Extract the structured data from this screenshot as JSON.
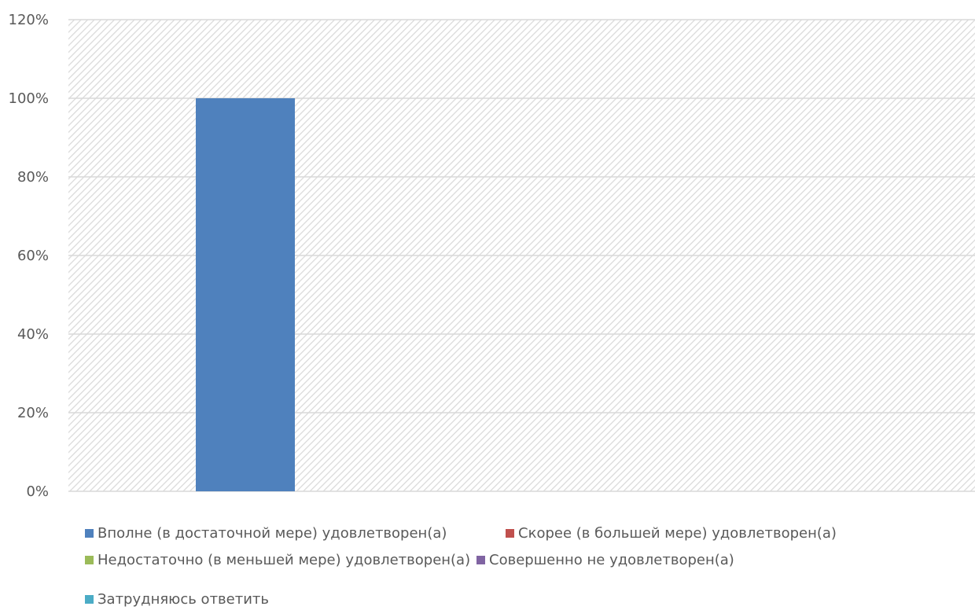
{
  "chart_data": {
    "type": "bar",
    "categories": [
      ""
    ],
    "series": [
      {
        "name": "Вполне (в достаточной мере) удовлетворен(а)",
        "values": [
          100
        ],
        "color": "#4F81BD"
      },
      {
        "name": "Скорее (в большей мере) удовлетворен(а)",
        "values": [
          0
        ],
        "color": "#C0504D"
      },
      {
        "name": "Недостаточно (в меньшей мере) удовлетворен(а)",
        "values": [
          0
        ],
        "color": "#9BBB59"
      },
      {
        "name": "Совершенно не удовлетворен(а)",
        "values": [
          0
        ],
        "color": "#8064A2"
      },
      {
        "name": "Затрудняюсь ответить",
        "values": [
          0
        ],
        "color": "#4BACC6"
      }
    ],
    "y_ticks": [
      "0%",
      "20%",
      "40%",
      "60%",
      "80%",
      "100%",
      "120%"
    ],
    "ylim": [
      0,
      120
    ],
    "y_unit": "%",
    "grid": true,
    "plot_background": "hatched",
    "legend_position": "bottom"
  }
}
